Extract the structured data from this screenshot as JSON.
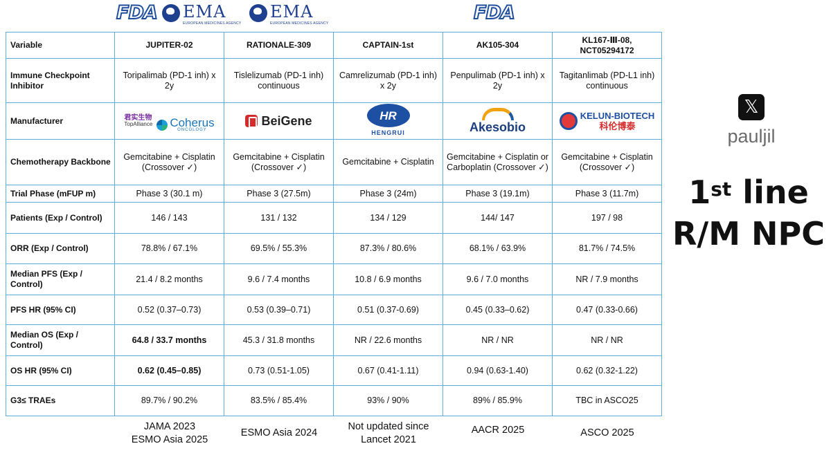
{
  "logos": {
    "fda": "FDA",
    "ema": "EMA",
    "ema_sub": "EUROPEAN MEDICINES AGENCY"
  },
  "table": {
    "columns": [
      "Variable",
      "JUPITER-02",
      "RATIONALE-309",
      "CAPTAIN-1st",
      "AK105-304",
      "KL167-Ⅲ-08,\nNCT05294172"
    ],
    "rows": [
      {
        "label": "Immune Checkpoint Inhibitor",
        "cells": [
          "Toripalimab (PD-1 inh) x 2y",
          "Tislelizumab (PD-1 inh) continuous",
          "Camrelizumab (PD-1 inh) x 2y",
          "Penpulimab (PD-1 inh) x 2y",
          "Tagitanlimab (PD-L1 inh) continuous"
        ]
      },
      {
        "label": "Manufacturer",
        "cells": [
          "TopAlliance / Coherus",
          "BeiGene",
          "HENGRUI",
          "Akesobio",
          "KELUN-BIOTECH"
        ]
      },
      {
        "label": "Chemotherapy Backbone",
        "cells": [
          "Gemcitabine + Cisplatin (Crossover ✓)",
          "Gemcitabine + Cisplatin (Crossover ✓)",
          "Gemcitabine + Cisplatin",
          "Gemcitabine + Cisplatin or Carboplatin (Crossover ✓)",
          "Gemcitabine + Cisplatin (Crossover ✓)"
        ]
      },
      {
        "label": "Trial Phase (mFUP m)",
        "cells": [
          "Phase 3 (30.1 m)",
          "Phase 3 (27.5m)",
          "Phase 3 (24m)",
          "Phase 3 (19.1m)",
          "Phase 3 (11.7m)"
        ]
      },
      {
        "label": "Patients (Exp / Control)",
        "cells": [
          "146 / 143",
          "131 / 132",
          "134 / 129",
          "144/ 147",
          "197 / 98"
        ]
      },
      {
        "label": "ORR (Exp / Control)",
        "cells": [
          "78.8% / 67.1%",
          "69.5% / 55.3%",
          "87.3% / 80.6%",
          "68.1% / 63.9%",
          "81.7% / 74.5%"
        ]
      },
      {
        "label": "Median PFS (Exp / Control)",
        "cells": [
          "21.4 / 8.2 months",
          "9.6 / 7.4 months",
          "10.8 / 6.9 months",
          "9.6 / 7.0 months",
          "NR / 7.9 months"
        ]
      },
      {
        "label": "PFS HR (95% CI)",
        "cells": [
          "0.52 (0.37–0.73)",
          "0.53 (0.39–0.71)",
          "0.51 (0.37-0.69)",
          "0.45 (0.33–0.62)",
          "0.47 (0.33-0.66)"
        ]
      },
      {
        "label": "Median OS (Exp / Control)",
        "cells": [
          "64.8 / 33.7 months",
          "45.3 / 31.8 months",
          "NR / 22.6 months",
          "NR / NR",
          "NR / NR"
        ]
      },
      {
        "label": "OS HR (95% CI)",
        "cells": [
          "0.62 (0.45–0.85)",
          "0.73 (0.51-1.05)",
          "0.67 (0.41-1.11)",
          "0.94 (0.63-1.40)",
          "0.62 (0.32-1.22)"
        ]
      },
      {
        "label": "G3≤ TRAEs",
        "cells": [
          "89.7% / 90.2%",
          "83.5% / 85.4%",
          "93% / 90%",
          "89% / 85.9%",
          "TBC in ASCO25"
        ]
      }
    ],
    "manufacturer_logos": {
      "topalliance_cn": "君实生物",
      "topalliance": "TopAlliance",
      "coherus": "Coherus",
      "coherus_sub": "ONCOLOGY",
      "beigene": "BeiGene",
      "hengrui_mark": "HR",
      "hengrui": "HENGRUI",
      "akesobio": "Akesobio",
      "kelun": "KELUN-BIOTECH",
      "kelun_cn": "科伦博泰"
    }
  },
  "citations": [
    "JAMA 2023\nESMO Asia 2025",
    "ESMO Asia 2024",
    "Not updated since\nLancet 2021",
    "AACR 2025",
    "ASCO 2025"
  ],
  "sidebar": {
    "x_icon": "x-logo-icon",
    "handle": "pauljil",
    "title_line1_num": "1",
    "title_line1_sup": "st",
    "title_line1_rest": " line",
    "title_line2": "R/M NPC"
  }
}
